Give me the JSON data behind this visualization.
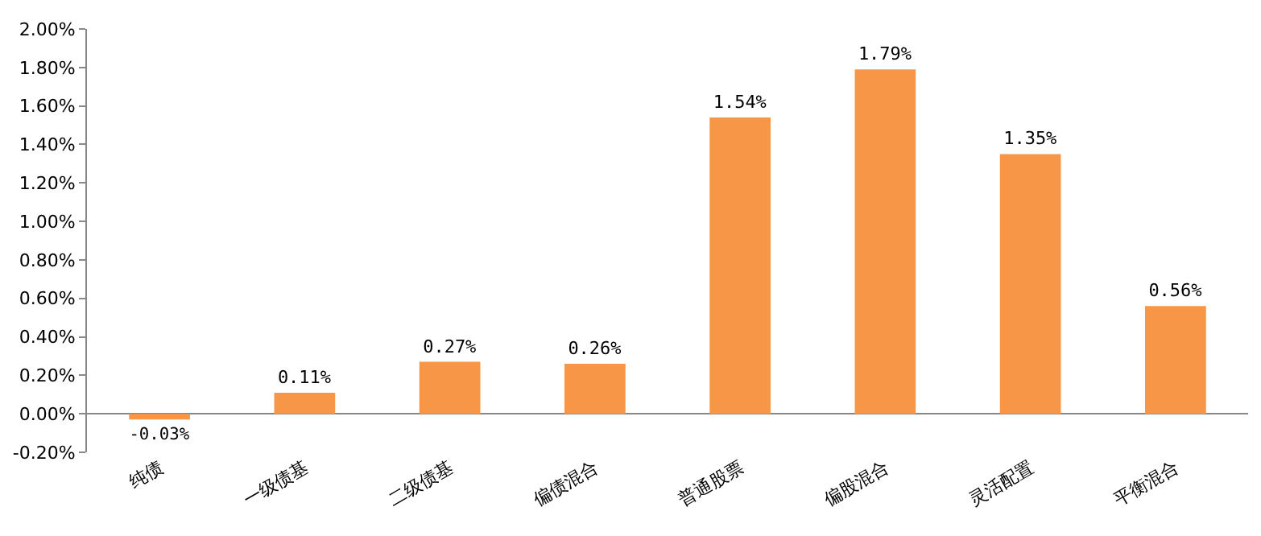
{
  "chart_data": {
    "type": "bar",
    "categories": [
      "纯债",
      "一级债基",
      "二级债基",
      "偏债混合",
      "普通股票",
      "偏股混合",
      "灵活配置",
      "平衡混合"
    ],
    "values": [
      -0.03,
      0.11,
      0.27,
      0.26,
      1.54,
      1.79,
      1.35,
      0.56
    ],
    "value_labels": [
      "-0.03%",
      "0.11%",
      "0.27%",
      "0.26%",
      "1.54%",
      "1.79%",
      "1.35%",
      "0.56%"
    ],
    "color": "#f79646",
    "ylim": [
      -0.2,
      2.0
    ],
    "yticks": [
      {
        "value": -0.2,
        "label": "-0.20%"
      },
      {
        "value": 0,
        "label": "0.00%"
      },
      {
        "value": 0.2,
        "label": "0.20%"
      },
      {
        "value": 0.4,
        "label": "0.40%"
      },
      {
        "value": 0.6,
        "label": "0.60%"
      },
      {
        "value": 0.8,
        "label": "0.80%"
      },
      {
        "value": 1.0,
        "label": "1.00%"
      },
      {
        "value": 1.2,
        "label": "1.20%"
      },
      {
        "value": 1.4,
        "label": "1.40%"
      },
      {
        "value": 1.6,
        "label": "1.60%"
      },
      {
        "value": 1.8,
        "label": "1.80%"
      },
      {
        "value": 2.0,
        "label": "2.00%"
      }
    ],
    "grid": false,
    "legend": false
  }
}
